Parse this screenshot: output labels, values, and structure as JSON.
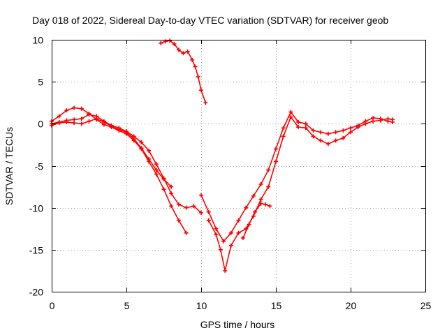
{
  "chart_data": {
    "type": "scatter",
    "title": "Day 018 of 2022, Sidereal Day-to-day VTEC variation (SDTVAR) for receiver geob",
    "xlabel": "GPS time / hours",
    "ylabel": "SDTVAR / TECUs",
    "xlim": [
      0,
      25
    ],
    "ylim": [
      -20,
      10
    ],
    "xticks": [
      0,
      5,
      10,
      15,
      20,
      25
    ],
    "yticks": [
      -20,
      -15,
      -10,
      -5,
      0,
      5,
      10
    ],
    "xtick_labels": [
      "0",
      "5",
      "10",
      "15",
      "20",
      "25"
    ],
    "ytick_labels": [
      "-20",
      "-15",
      "-10",
      "-5",
      "0",
      "5",
      "10"
    ],
    "grid": true,
    "legend": "none",
    "marker": "+",
    "color": "#ff0000",
    "series": [
      {
        "name": "trace-1",
        "x": [
          0.0,
          0.5,
          1.0,
          1.5,
          2.0,
          2.5,
          3.0,
          3.5,
          4.0,
          4.5,
          5.0,
          5.5,
          6.0,
          6.5,
          7.0,
          7.5,
          8.0,
          8.5,
          9.0
        ],
        "y": [
          0.3,
          0.9,
          1.6,
          1.9,
          1.8,
          1.2,
          0.5,
          -0.1,
          -0.4,
          -0.8,
          -1.2,
          -2.0,
          -3.0,
          -4.5,
          -6.0,
          -7.8,
          -9.8,
          -11.5,
          -13.0
        ]
      },
      {
        "name": "trace-2",
        "x": [
          0.0,
          0.5,
          1.0,
          1.5,
          2.0,
          2.5,
          3.0,
          3.5,
          4.0,
          4.5,
          5.0,
          5.5,
          6.0,
          6.5,
          7.0,
          7.5,
          8.0,
          8.5,
          9.0,
          9.5,
          10.0
        ],
        "y": [
          0.0,
          0.2,
          0.4,
          0.5,
          0.6,
          1.1,
          0.9,
          0.3,
          -0.2,
          -0.5,
          -0.9,
          -1.5,
          -2.2,
          -3.2,
          -4.8,
          -6.5,
          -8.3,
          -9.6,
          -10.0,
          -9.8,
          -10.6
        ]
      },
      {
        "name": "trace-3",
        "x": [
          0.0,
          0.5,
          1.0,
          1.5,
          2.0,
          2.5,
          3.0,
          3.5,
          4.0,
          4.5,
          5.0,
          5.5,
          6.0,
          6.5,
          7.0,
          7.5,
          8.0
        ],
        "y": [
          -0.2,
          0.1,
          0.2,
          0.1,
          0.0,
          0.3,
          0.6,
          0.2,
          -0.3,
          -0.7,
          -1.0,
          -1.8,
          -2.9,
          -4.2,
          -5.5,
          -6.6,
          -7.5
        ]
      },
      {
        "name": "trace-4",
        "x": [
          7.3,
          7.6,
          7.9,
          8.2,
          8.5,
          8.8,
          9.1,
          9.4,
          9.6,
          9.8,
          10.0,
          10.3
        ],
        "y": [
          9.6,
          9.8,
          9.9,
          9.5,
          8.8,
          8.4,
          8.6,
          7.6,
          6.8,
          5.6,
          4.0,
          2.5
        ]
      },
      {
        "name": "trace-5",
        "x": [
          10.0,
          10.5,
          11.0,
          11.5,
          12.0,
          12.5,
          13.0,
          13.5,
          14.0,
          14.5,
          15.0,
          15.5,
          16.0,
          16.5,
          17.0,
          17.5,
          18.0,
          18.5,
          19.0,
          19.5,
          20.0,
          20.5,
          21.0,
          21.5,
          22.0,
          22.5,
          22.8
        ],
        "y": [
          -8.5,
          -10.5,
          -12.5,
          -14.0,
          -13.0,
          -11.5,
          -10.0,
          -8.6,
          -7.2,
          -5.5,
          -3.0,
          -0.5,
          1.4,
          0.2,
          0.0,
          -0.8,
          -1.0,
          -1.2,
          -1.0,
          -0.8,
          -0.5,
          -0.2,
          0.3,
          0.7,
          0.6,
          0.3,
          0.2
        ]
      },
      {
        "name": "trace-6",
        "x": [
          10.5,
          11.0,
          11.3,
          11.6,
          12.0,
          12.5,
          13.0,
          13.5,
          14.0,
          14.5,
          15.0,
          15.5,
          16.0,
          16.5,
          17.0,
          17.5,
          18.0,
          18.5,
          19.0,
          19.5,
          20.0,
          20.5,
          21.0,
          21.5,
          22.0,
          22.5,
          22.8
        ],
        "y": [
          -11.5,
          -13.2,
          -15.0,
          -17.5,
          -14.5,
          -13.0,
          -12.5,
          -11.0,
          -9.0,
          -7.5,
          -4.5,
          -1.5,
          0.8,
          -0.4,
          -0.5,
          -1.5,
          -2.0,
          -2.4,
          -2.0,
          -1.7,
          -1.0,
          -0.4,
          0.0,
          0.3,
          0.4,
          0.6,
          0.5
        ]
      },
      {
        "name": "trace-7",
        "x": [
          12.8,
          13.2,
          13.6,
          14.0,
          14.3,
          14.6
        ],
        "y": [
          -13.6,
          -12.0,
          -10.5,
          -9.5,
          -9.6,
          -9.8
        ]
      }
    ]
  }
}
